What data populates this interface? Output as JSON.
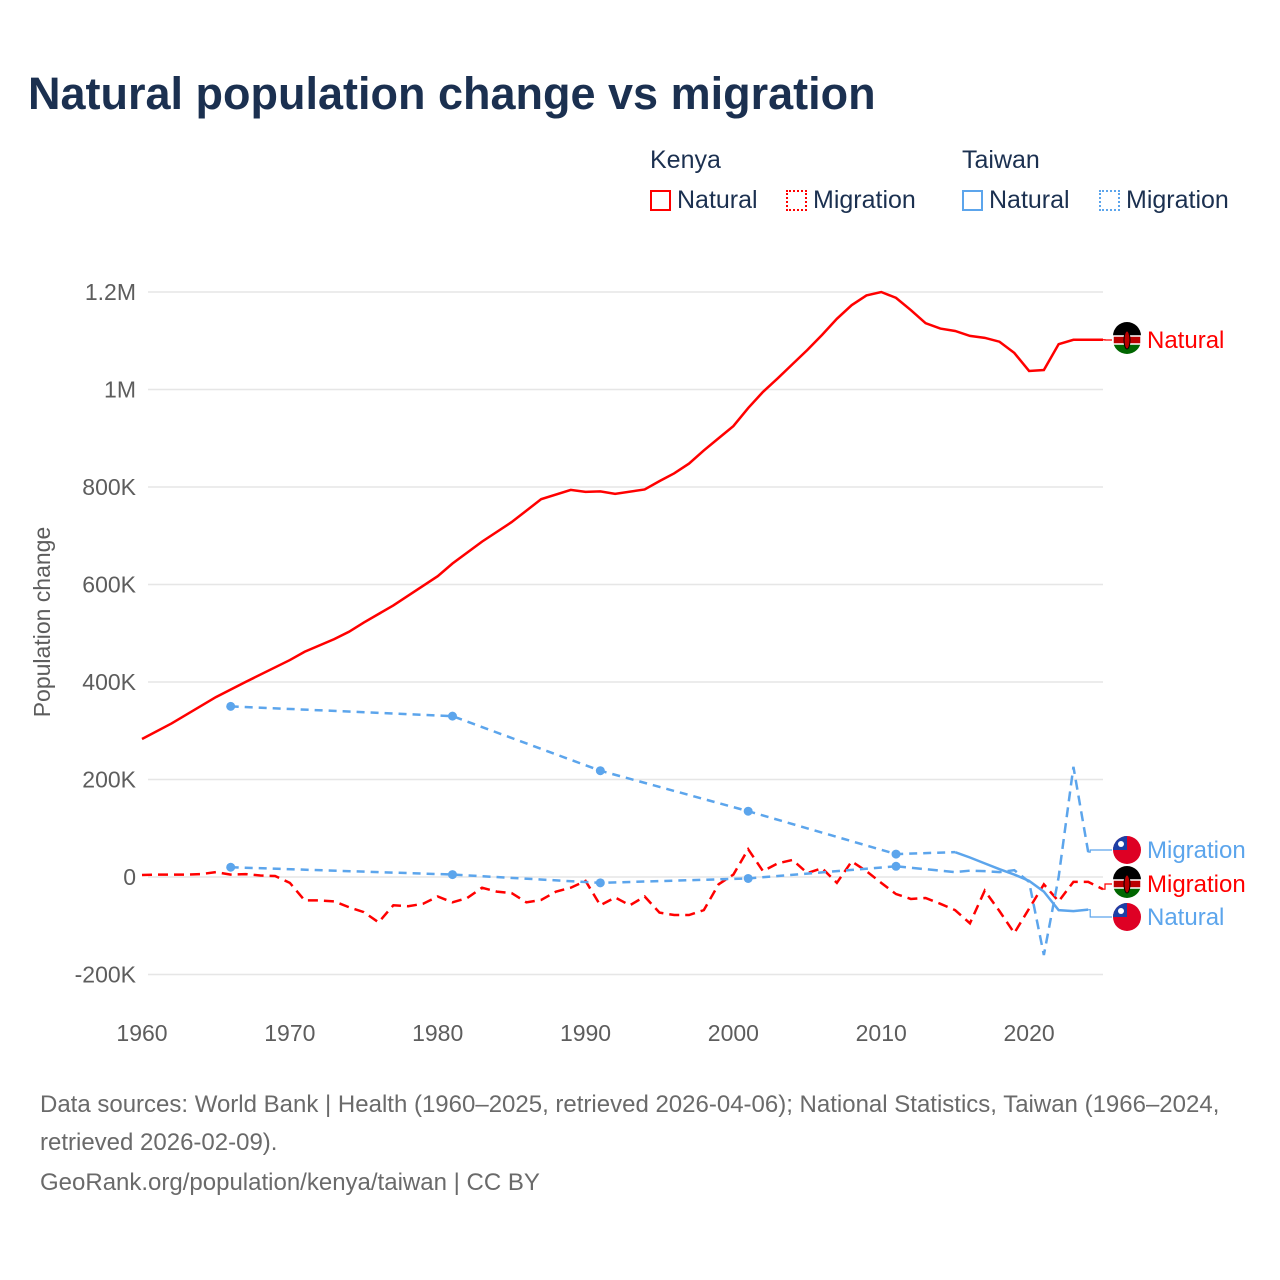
{
  "title": "Natural population change vs migration",
  "legend": {
    "kenya": {
      "title": "Kenya",
      "natural": "Natural",
      "migration": "Migration"
    },
    "taiwan": {
      "title": "Taiwan",
      "natural": "Natural",
      "migration": "Migration"
    }
  },
  "footer": {
    "sources": "Data sources: World Bank | Health (1960–2025, retrieved 2026-04-06); National Statistics, Taiwan (1966–2024, retrieved 2026-02-09).",
    "credit": "GeoRank.org/population/kenya/taiwan | CC BY"
  },
  "colors": {
    "kenya": "#ff0000",
    "taiwan": "#5ca5ec"
  },
  "chart_data": {
    "type": "line",
    "ylabel": "Population change",
    "xlim": [
      1960,
      2025
    ],
    "ylim": [
      -200000,
      1200000
    ],
    "xticks": [
      1960,
      1970,
      1980,
      1990,
      2000,
      2010,
      2020
    ],
    "yticks": [
      {
        "v": -200000,
        "label": "-200K"
      },
      {
        "v": 0,
        "label": "0"
      },
      {
        "v": 200000,
        "label": "200K"
      },
      {
        "v": 400000,
        "label": "400K"
      },
      {
        "v": 600000,
        "label": "600K"
      },
      {
        "v": 800000,
        "label": "800K"
      },
      {
        "v": 1000000,
        "label": "1M"
      },
      {
        "v": 1200000,
        "label": "1.2M"
      }
    ],
    "series": [
      {
        "name": "Kenya Natural",
        "end_label": "Natural",
        "country": "kenya",
        "dash": false,
        "x": [
          1960,
          1962,
          1965,
          1967,
          1970,
          1971,
          1973,
          1974,
          1975,
          1977,
          1980,
          1981,
          1983,
          1985,
          1987,
          1989,
          1990,
          1991,
          1992,
          1994,
          1995,
          1996,
          1997,
          1998,
          1999,
          2000,
          2001,
          2002,
          2003,
          2004,
          2005,
          2006,
          2007,
          2008,
          2009,
          2010,
          2011,
          2012,
          2013,
          2014,
          2015,
          2016,
          2017,
          2018,
          2019,
          2020,
          2021,
          2022,
          2023,
          2024,
          2025
        ],
        "y": [
          283000,
          315000,
          369000,
          400000,
          445000,
          462000,
          488000,
          503000,
          522000,
          557000,
          617000,
          643000,
          688000,
          728000,
          775000,
          794000,
          790000,
          791000,
          786000,
          795000,
          812000,
          828000,
          848000,
          875000,
          900000,
          925000,
          962000,
          995000,
          1023000,
          1052000,
          1081000,
          1112000,
          1145000,
          1173000,
          1193000,
          1200000,
          1188000,
          1163000,
          1136000,
          1125000,
          1120000,
          1110000,
          1106000,
          1098000,
          1075000,
          1038000,
          1040000,
          1093000,
          1102000,
          1102000,
          1102000
        ]
      },
      {
        "name": "Kenya Migration",
        "end_label": "Migration",
        "country": "kenya",
        "dash": true,
        "x": [
          1960,
          1961,
          1962,
          1963,
          1964,
          1965,
          1966,
          1967,
          1968,
          1969,
          1970,
          1971,
          1972,
          1973,
          1974,
          1975,
          1976,
          1977,
          1978,
          1979,
          1980,
          1981,
          1982,
          1983,
          1984,
          1985,
          1986,
          1987,
          1988,
          1989,
          1990,
          1991,
          1992,
          1993,
          1994,
          1995,
          1996,
          1997,
          1998,
          1999,
          2000,
          2001,
          2002,
          2003,
          2004,
          2005,
          2006,
          2007,
          2008,
          2009,
          2010,
          2011,
          2012,
          2013,
          2014,
          2015,
          2016,
          2017,
          2018,
          2019,
          2020,
          2021,
          2022,
          2023,
          2024,
          2025
        ],
        "y": [
          4000,
          5000,
          5000,
          5000,
          6000,
          10000,
          5000,
          6000,
          3000,
          2000,
          -12000,
          -48000,
          -48000,
          -50000,
          -62000,
          -72000,
          -93000,
          -58000,
          -60000,
          -55000,
          -40000,
          -52000,
          -43000,
          -22000,
          -30000,
          -33000,
          -52000,
          -47000,
          -30000,
          -22000,
          -8000,
          -58000,
          -42000,
          -58000,
          -40000,
          -73000,
          -78000,
          -78000,
          -68000,
          -15000,
          5000,
          57000,
          12000,
          28000,
          35000,
          8000,
          18000,
          -12000,
          32000,
          12000,
          -12000,
          -35000,
          -45000,
          -43000,
          -55000,
          -68000,
          -95000,
          -28000,
          -70000,
          -115000,
          -65000,
          -15000,
          -50000,
          -10000,
          -10000,
          -25000
        ]
      },
      {
        "name": "Taiwan Natural",
        "end_label": "Natural",
        "country": "taiwan",
        "dash": false,
        "sparse_until": 2015,
        "x": [
          1966,
          1981,
          1991,
          2001,
          2011,
          2015,
          2016,
          2017,
          2018,
          2019,
          2020,
          2021,
          2022,
          2023,
          2024
        ],
        "y": [
          350000,
          330000,
          218000,
          135000,
          47000,
          51000,
          40000,
          28000,
          16000,
          5000,
          -8000,
          -30000,
          -68000,
          -70000,
          -67000
        ]
      },
      {
        "name": "Taiwan Migration",
        "end_label": "Migration",
        "country": "taiwan",
        "dash": true,
        "sparse_until": 2011,
        "x": [
          1966,
          1981,
          1991,
          2001,
          2011,
          2015,
          2016,
          2017,
          2018,
          2019,
          2020,
          2021,
          2022,
          2023,
          2024
        ],
        "y": [
          20000,
          5000,
          -12000,
          -3000,
          22000,
          10000,
          13000,
          12000,
          10000,
          14000,
          -10000,
          -160000,
          0,
          226000,
          51000
        ]
      }
    ]
  }
}
